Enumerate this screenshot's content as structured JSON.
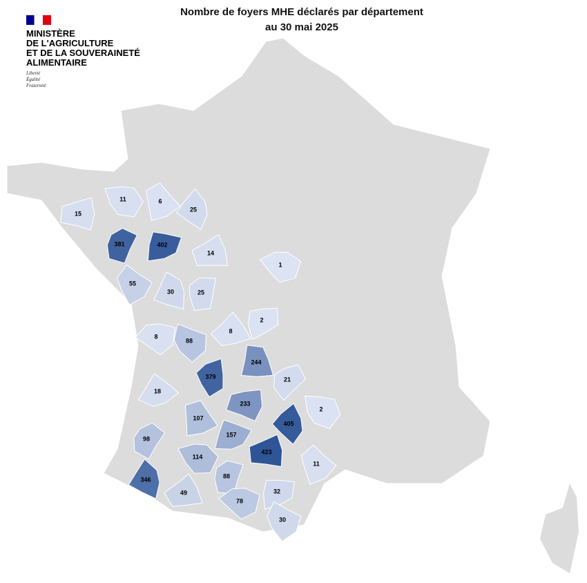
{
  "header": {
    "title": [
      "Nombre de foyers MHE déclarés par département",
      "au 30 mai 2025"
    ],
    "logo": [
      "MINISTÈRE",
      "DE L'AGRICULTURE",
      "ET DE LA SOUVERAINETÉ",
      "ALIMENTAIRE"
    ],
    "motto": [
      "Liberté",
      "Égalité",
      "Fraternité"
    ]
  },
  "map": {
    "values": [
      15,
      11,
      6,
      25,
      381,
      402,
      14,
      1,
      55,
      30,
      25,
      2,
      8,
      8,
      88,
      244,
      379,
      21,
      18,
      233,
      2,
      107,
      405,
      98,
      157,
      423,
      114,
      11,
      346,
      88,
      32,
      49,
      78,
      30
    ],
    "color_scale": [
      "#dce3f3",
      "#2f5597"
    ],
    "base_color": "#dcdcdc"
  }
}
